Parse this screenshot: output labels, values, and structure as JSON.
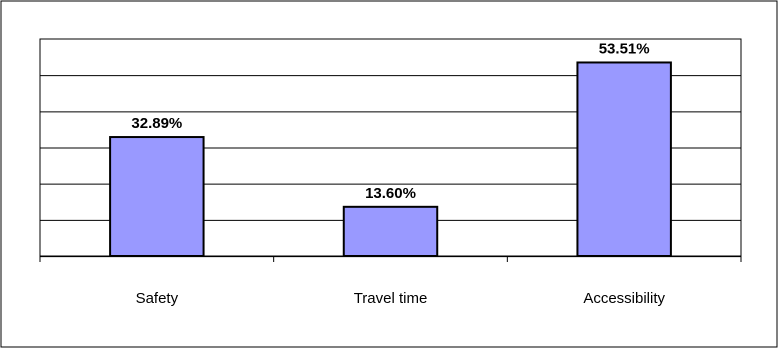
{
  "chart_data": {
    "type": "bar",
    "categories": [
      "Safety",
      "Travel time",
      "Accessibility"
    ],
    "values": [
      32.89,
      13.6,
      53.51
    ],
    "data_labels": [
      "32.89%",
      "13.60%",
      "53.51%"
    ],
    "title": "",
    "xlabel": "",
    "ylabel": "",
    "ylim": [
      0,
      60
    ],
    "y_tick_labels_shown": false,
    "grid": true,
    "legend": "none",
    "colors": {
      "bar_fill": "#9999ff",
      "bar_stroke": "#000000",
      "grid": "#000000",
      "plot_background": "#ffffff"
    }
  }
}
